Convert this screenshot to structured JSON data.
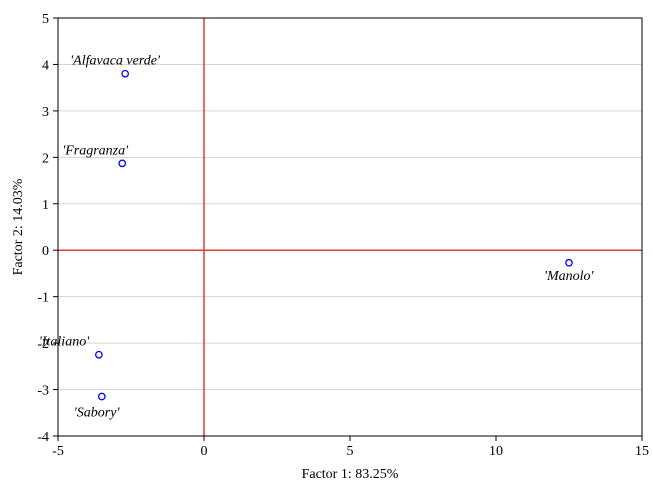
{
  "chart_data": {
    "type": "scatter",
    "xlabel": "Factor 1: 83.25%",
    "ylabel": "Factor 2: 14.03%",
    "xlim": [
      -5,
      15
    ],
    "ylim": [
      -4,
      5
    ],
    "x_ticks": [
      "-5",
      "0",
      "5",
      "10",
      "15"
    ],
    "y_ticks": [
      "-4",
      "-3",
      "-2",
      "-1",
      "0",
      "1",
      "2",
      "3",
      "4",
      "5"
    ],
    "grid": "horizontal",
    "reference_lines": {
      "x": 0,
      "y": 0,
      "color": "#e8393d"
    },
    "marker_color": "#0000ff",
    "points": [
      {
        "label": "'Alfavaca verde'",
        "x": -2.7,
        "y": 3.8
      },
      {
        "label": "'Fragranza'",
        "x": -2.8,
        "y": 1.87
      },
      {
        "label": "'Manolo'",
        "x": 12.5,
        "y": -0.27
      },
      {
        "label": "'Italiano'",
        "x": -3.6,
        "y": -2.25
      },
      {
        "label": "'Sabory'",
        "x": -3.5,
        "y": -3.15
      }
    ]
  }
}
